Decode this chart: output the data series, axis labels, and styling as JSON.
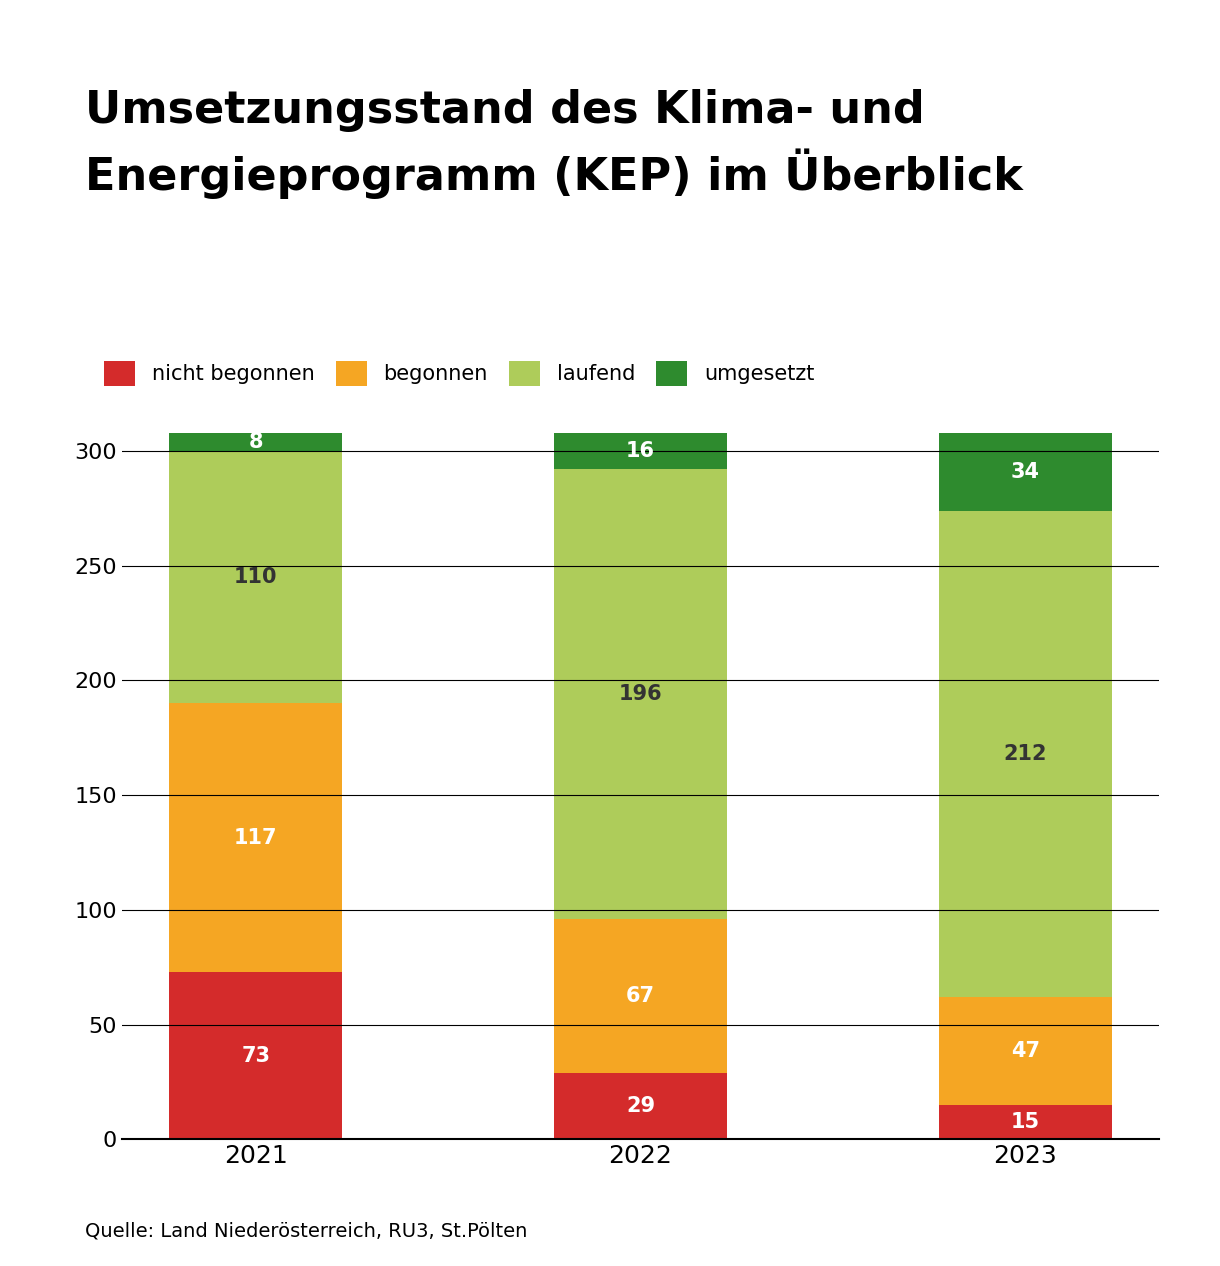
{
  "title_line1": "Umsetzungsstand des Klima- und",
  "title_line2": "Energieprogramm (KEP) im Überblick",
  "categories": [
    "2021",
    "2022",
    "2023"
  ],
  "nicht_begonnen": [
    73,
    29,
    15
  ],
  "begonnen": [
    117,
    67,
    47
  ],
  "laufend": [
    110,
    196,
    212
  ],
  "umgesetzt": [
    8,
    16,
    34
  ],
  "color_nicht_begonnen": "#D42B2B",
  "color_begonnen": "#F5A623",
  "color_laufend": "#AECC5A",
  "color_umgesetzt": "#2E8B2E",
  "legend_labels": [
    "nicht begonnen",
    "begonnen",
    "laufend",
    "umgesetzt"
  ],
  "ylabel_ticks": [
    0,
    50,
    100,
    150,
    200,
    250,
    300
  ],
  "source": "Quelle: Land Niederösterreich, RU3, St.Pölten",
  "ylim": [
    0,
    320
  ],
  "background_color": "#FFFFFF",
  "title_fontsize": 32,
  "label_fontsize": 15,
  "tick_fontsize": 16,
  "source_fontsize": 14,
  "legend_fontsize": 15,
  "bar_width": 0.45
}
